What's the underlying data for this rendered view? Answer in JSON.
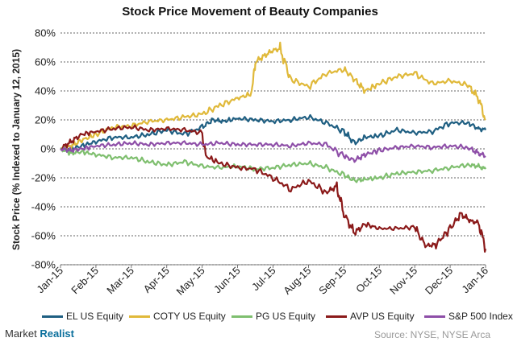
{
  "chart_data": {
    "type": "line",
    "title": "Stock Price Movement of Beauty Companies",
    "ylabel": "Stock Price (% Indexed to January 12, 2015)",
    "xlabel": "",
    "ylim": [
      -80,
      80
    ],
    "yticks": [
      -80,
      -60,
      -40,
      -20,
      0,
      20,
      40,
      60,
      80
    ],
    "ytick_labels": [
      "-80%",
      "-60%",
      "-40%",
      "-20%",
      "0%",
      "20%",
      "40%",
      "60%",
      "80%"
    ],
    "xlim": [
      0,
      12
    ],
    "xtick_labels": [
      "Jan-15",
      "Feb-15",
      "Mar-15",
      "Apr-15",
      "May-15",
      "Jun-15",
      "Jul-15",
      "Aug-15",
      "Sep-15",
      "Oct-15",
      "Nov-15",
      "Dec-15",
      "Jan-16"
    ],
    "grid": "horizontal dashed",
    "legend_position": "bottom",
    "series": [
      {
        "name": "EL US Equity",
        "color": "#1f5f82",
        "x": [
          0,
          0.3,
          0.6,
          1.0,
          1.5,
          2.0,
          2.5,
          3.0,
          3.5,
          4.0,
          4.3,
          4.6,
          5.0,
          5.5,
          6.0,
          6.5,
          7.0,
          7.5,
          8.0,
          8.3,
          8.6,
          9.0,
          9.5,
          10.0,
          10.5,
          11.0,
          11.5,
          11.8,
          12.0
        ],
        "values": [
          0,
          0,
          2,
          5,
          8,
          8,
          10,
          13,
          10,
          15,
          20,
          19,
          21,
          20,
          19,
          20,
          22,
          18,
          12,
          4,
          8,
          9,
          13,
          11,
          12,
          18,
          18,
          14,
          13
        ]
      },
      {
        "name": "COTY US Equity",
        "color": "#e0b93a",
        "x": [
          0,
          0.3,
          0.6,
          1.0,
          1.5,
          2.0,
          2.5,
          3.0,
          3.5,
          4.0,
          4.5,
          5.0,
          5.4,
          5.5,
          5.8,
          6.0,
          6.2,
          6.5,
          7.0,
          7.5,
          8.0,
          8.3,
          8.6,
          9.0,
          9.5,
          10.0,
          10.5,
          11.0,
          11.5,
          11.8,
          12.0
        ],
        "values": [
          0,
          2,
          6,
          10,
          15,
          16,
          19,
          20,
          22,
          24,
          30,
          35,
          38,
          60,
          65,
          68,
          69,
          48,
          43,
          52,
          55,
          48,
          40,
          45,
          50,
          52,
          45,
          47,
          44,
          35,
          20
        ]
      },
      {
        "name": "PG US Equity",
        "color": "#7fbf6f",
        "x": [
          0,
          0.3,
          0.6,
          1.0,
          1.5,
          2.0,
          2.5,
          3.0,
          3.5,
          4.0,
          4.5,
          5.0,
          5.5,
          6.0,
          6.5,
          7.0,
          7.5,
          8.0,
          8.3,
          8.6,
          9.0,
          9.5,
          10.0,
          10.5,
          11.0,
          11.5,
          11.8,
          12.0
        ],
        "values": [
          0,
          -3,
          -2,
          -4,
          -6,
          -6,
          -9,
          -11,
          -9,
          -12,
          -13,
          -12,
          -14,
          -13,
          -11,
          -10,
          -13,
          -18,
          -22,
          -21,
          -20,
          -17,
          -16,
          -15,
          -13,
          -11,
          -12,
          -14
        ]
      },
      {
        "name": "AVP US Equity",
        "color": "#8b1a1a",
        "x": [
          0,
          0.3,
          0.6,
          1.0,
          1.5,
          2.0,
          2.5,
          3.0,
          3.5,
          4.0,
          4.1,
          4.5,
          5.0,
          5.5,
          6.0,
          6.5,
          7.0,
          7.5,
          7.8,
          8.0,
          8.3,
          8.6,
          9.0,
          9.5,
          10.0,
          10.3,
          10.6,
          11.0,
          11.3,
          11.6,
          11.8,
          12.0
        ],
        "values": [
          0,
          5,
          10,
          12,
          14,
          15,
          13,
          14,
          13,
          11,
          -5,
          -10,
          -13,
          -14,
          -20,
          -28,
          -22,
          -30,
          -26,
          -45,
          -58,
          -52,
          -55,
          -55,
          -54,
          -67,
          -66,
          -55,
          -45,
          -50,
          -51,
          -69
        ]
      },
      {
        "name": "S&P 500 Index",
        "color": "#8e4fa8",
        "x": [
          0,
          0.3,
          0.6,
          1.0,
          1.5,
          2.0,
          2.5,
          3.0,
          3.5,
          4.0,
          4.5,
          5.0,
          5.5,
          6.0,
          6.5,
          7.0,
          7.5,
          8.0,
          8.3,
          8.6,
          9.0,
          9.5,
          10.0,
          10.5,
          11.0,
          11.5,
          11.8,
          12.0
        ],
        "values": [
          0,
          -1,
          0,
          2,
          3,
          4,
          3,
          4,
          4,
          3,
          4,
          3,
          3,
          3,
          2,
          4,
          3,
          -5,
          -8,
          -4,
          -1,
          1,
          2,
          1,
          2,
          1,
          -3,
          -5
        ]
      }
    ]
  },
  "footer": {
    "brand_name": "Market",
    "brand_strong": "Realist",
    "source": "Source: NYSE, NYSE Arca"
  }
}
